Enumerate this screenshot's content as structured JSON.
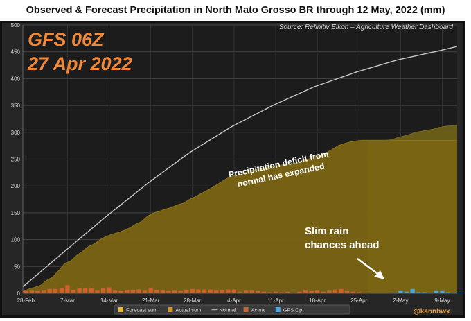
{
  "header": {
    "title": "Observed & Forecast Precipitation in North Mato Grosso BR through 12 May, 2022 (mm)"
  },
  "overlay": {
    "model_line1": "GFS 06Z",
    "model_line2": "27 Apr 2022",
    "source": "Source: Refinitiv Eikon – Agriculture Weather Dashboard",
    "handle": "@kannbwx"
  },
  "chart_data": {
    "type": "area",
    "title": "Observed & Forecast Precipitation in North Mato Grosso BR through 12 May, 2022 (mm)",
    "x_start": "2022-02-28",
    "x_end": "2022-05-12",
    "ylim": [
      0,
      500
    ],
    "yticks": [
      0,
      50,
      100,
      150,
      200,
      250,
      300,
      350,
      400,
      450,
      500
    ],
    "xtick_labels": [
      "28-Feb",
      "7-Mar",
      "14-Mar",
      "21-Mar",
      "28-Mar",
      "4-Apr",
      "11-Apr",
      "18-Apr",
      "25-Apr",
      "2-May",
      "9-May"
    ],
    "grid": true,
    "legend_position": "bottom",
    "legend": [
      {
        "label": "Forecast sum",
        "color": "#e8c020"
      },
      {
        "label": "Actual sum",
        "color": "#d19a22"
      },
      {
        "label": "Normal",
        "color": "#aaaaaa"
      },
      {
        "label": "Actual",
        "color": "#d0602e"
      },
      {
        "label": "GFS Op",
        "color": "#4aa8e8"
      }
    ],
    "colors": {
      "actual_sum": "#7a6414",
      "forecast_sum": "#6e6018",
      "normal": "#c8c8c8",
      "actual": "#d0602e",
      "gfs_op": "#4aa8e8",
      "grid": "#444444",
      "axis_text": "#d8d8d8"
    },
    "normal": {
      "x": [
        "2022-02-28",
        "2022-03-07",
        "2022-03-14",
        "2022-03-21",
        "2022-03-28",
        "2022-04-04",
        "2022-04-11",
        "2022-04-18",
        "2022-04-25",
        "2022-05-02",
        "2022-05-09",
        "2022-05-12"
      ],
      "y": [
        12,
        78,
        143,
        205,
        262,
        310,
        350,
        385,
        412,
        435,
        452,
        460
      ]
    },
    "actual_sum": {
      "x": [
        "2022-02-28",
        "2022-03-01",
        "2022-03-02",
        "2022-03-03",
        "2022-03-04",
        "2022-03-05",
        "2022-03-06",
        "2022-03-07",
        "2022-03-08",
        "2022-03-09",
        "2022-03-10",
        "2022-03-11",
        "2022-03-12",
        "2022-03-13",
        "2022-03-14",
        "2022-03-15",
        "2022-03-16",
        "2022-03-17",
        "2022-03-18",
        "2022-03-19",
        "2022-03-20",
        "2022-03-21",
        "2022-03-22",
        "2022-03-23",
        "2022-03-24",
        "2022-03-25",
        "2022-03-26",
        "2022-03-27",
        "2022-03-28",
        "2022-03-29",
        "2022-03-30",
        "2022-03-31",
        "2022-04-01",
        "2022-04-02",
        "2022-04-03",
        "2022-04-04",
        "2022-04-05",
        "2022-04-06",
        "2022-04-07",
        "2022-04-08",
        "2022-04-09",
        "2022-04-10",
        "2022-04-11",
        "2022-04-12",
        "2022-04-13",
        "2022-04-14",
        "2022-04-15",
        "2022-04-16",
        "2022-04-17",
        "2022-04-18",
        "2022-04-19",
        "2022-04-20",
        "2022-04-21",
        "2022-04-22",
        "2022-04-23",
        "2022-04-24",
        "2022-04-25",
        "2022-04-26",
        "2022-04-27",
        "2022-05-12"
      ],
      "y": [
        3,
        8,
        11,
        15,
        24,
        30,
        42,
        55,
        60,
        70,
        78,
        87,
        92,
        100,
        106,
        110,
        113,
        117,
        122,
        129,
        134,
        144,
        150,
        153,
        157,
        160,
        165,
        168,
        175,
        180,
        186,
        192,
        198,
        205,
        212,
        218,
        220,
        223,
        228,
        230,
        233,
        235,
        237,
        238,
        240,
        241,
        243,
        248,
        250,
        255,
        258,
        262,
        268,
        275,
        279,
        282,
        284,
        285,
        285,
        285
      ]
    },
    "forecast_sum": {
      "x": [
        "2022-04-27",
        "2022-04-28",
        "2022-04-29",
        "2022-04-30",
        "2022-05-01",
        "2022-05-02",
        "2022-05-03",
        "2022-05-04",
        "2022-05-05",
        "2022-05-06",
        "2022-05-07",
        "2022-05-08",
        "2022-05-09",
        "2022-05-10",
        "2022-05-11",
        "2022-05-12"
      ],
      "y": [
        285,
        285,
        285,
        285,
        286,
        290,
        293,
        296,
        300,
        302,
        304,
        306,
        309,
        311,
        312,
        313
      ]
    },
    "actual": {
      "x": [
        "2022-02-28",
        "2022-03-01",
        "2022-03-02",
        "2022-03-03",
        "2022-03-04",
        "2022-03-05",
        "2022-03-06",
        "2022-03-07",
        "2022-03-08",
        "2022-03-09",
        "2022-03-10",
        "2022-03-11",
        "2022-03-12",
        "2022-03-13",
        "2022-03-14",
        "2022-03-15",
        "2022-03-16",
        "2022-03-17",
        "2022-03-18",
        "2022-03-19",
        "2022-03-20",
        "2022-03-21",
        "2022-03-22",
        "2022-03-23",
        "2022-03-24",
        "2022-03-25",
        "2022-03-26",
        "2022-03-27",
        "2022-03-28",
        "2022-03-29",
        "2022-03-30",
        "2022-03-31",
        "2022-04-01",
        "2022-04-02",
        "2022-04-03",
        "2022-04-04",
        "2022-04-05",
        "2022-04-06",
        "2022-04-07",
        "2022-04-08",
        "2022-04-09",
        "2022-04-10",
        "2022-04-11",
        "2022-04-12",
        "2022-04-13",
        "2022-04-14",
        "2022-04-15",
        "2022-04-16",
        "2022-04-17",
        "2022-04-18",
        "2022-04-19",
        "2022-04-20",
        "2022-04-21",
        "2022-04-22",
        "2022-04-23",
        "2022-04-24",
        "2022-04-25",
        "2022-04-26"
      ],
      "y": [
        4,
        5,
        4,
        5,
        8,
        8,
        10,
        15,
        6,
        10,
        9,
        10,
        5,
        9,
        11,
        5,
        4,
        6,
        6,
        7,
        5,
        10,
        6,
        5,
        4,
        5,
        4,
        6,
        8,
        7,
        7,
        7,
        5,
        6,
        7,
        7,
        3,
        5,
        5,
        4,
        3,
        2,
        3,
        2,
        3,
        1,
        3,
        5,
        4,
        5,
        3,
        5,
        7,
        8,
        4,
        3,
        2,
        1
      ]
    },
    "gfs_op": {
      "x": [
        "2022-04-27",
        "2022-04-28",
        "2022-04-29",
        "2022-04-30",
        "2022-05-01",
        "2022-05-02",
        "2022-05-03",
        "2022-05-04",
        "2022-05-05",
        "2022-05-06",
        "2022-05-07",
        "2022-05-08",
        "2022-05-09",
        "2022-05-10",
        "2022-05-11",
        "2022-05-12"
      ],
      "y": [
        0,
        0,
        0,
        0,
        1,
        4,
        3,
        8,
        2,
        2,
        1,
        4,
        4,
        2,
        1,
        1
      ]
    },
    "annotations": [
      {
        "id": "deficit",
        "lines": [
          "Precipitation deficit from",
          "normal has expanded"
        ],
        "color": "#ffffff"
      },
      {
        "id": "slim",
        "lines": [
          "Slim rain",
          "chances ahead"
        ],
        "color": "#ffffff"
      }
    ]
  }
}
